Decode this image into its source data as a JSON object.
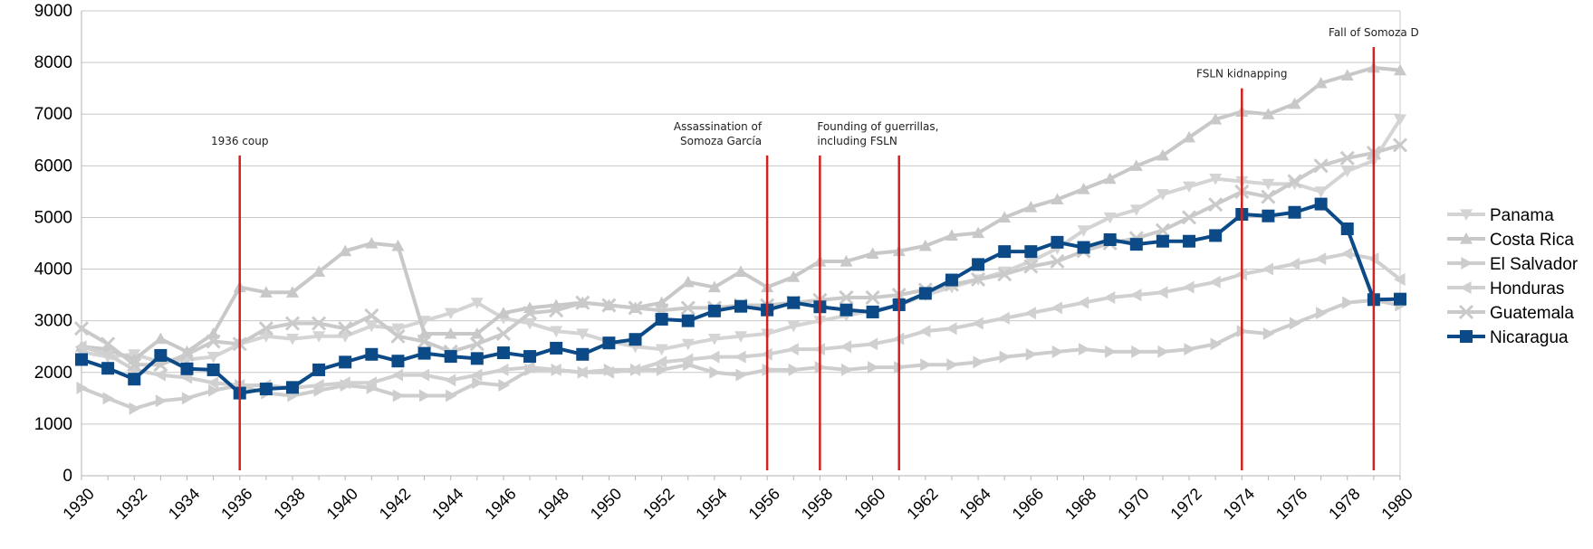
{
  "chart_data": {
    "type": "line",
    "title": "",
    "xlabel": "",
    "ylabel": "",
    "ylim": [
      0,
      9000
    ],
    "xlim": [
      1930,
      1980
    ],
    "grid": true,
    "legend_position": "right",
    "y_ticks": [
      "0",
      "1000",
      "2000",
      "3000",
      "4000",
      "5000",
      "6000",
      "7000",
      "8000",
      "9000"
    ],
    "x_ticks": [
      "1930",
      "1932",
      "1934",
      "1936",
      "1938",
      "1940",
      "1942",
      "1944",
      "1946",
      "1948",
      "1950",
      "1952",
      "1954",
      "1956",
      "1958",
      "1960",
      "1962",
      "1964",
      "1966",
      "1968",
      "1970",
      "1972",
      "1974",
      "1976",
      "1978",
      "1980"
    ],
    "x": [
      1930,
      1931,
      1932,
      1933,
      1934,
      1935,
      1936,
      1937,
      1938,
      1939,
      1940,
      1941,
      1942,
      1943,
      1944,
      1945,
      1946,
      1947,
      1948,
      1949,
      1950,
      1951,
      1952,
      1953,
      1954,
      1955,
      1956,
      1957,
      1958,
      1959,
      1960,
      1961,
      1962,
      1963,
      1964,
      1965,
      1966,
      1967,
      1968,
      1969,
      1970,
      1971,
      1972,
      1973,
      1974,
      1975,
      1976,
      1977,
      1978,
      1979,
      1980
    ],
    "series": [
      {
        "name": "Panama",
        "color": "#d4d4d4",
        "marker": "triangle-down",
        "values": [
          2400,
          2300,
          2350,
          2200,
          2250,
          2300,
          2550,
          2700,
          2650,
          2700,
          2700,
          2900,
          2850,
          3000,
          3150,
          3350,
          3050,
          2950,
          2800,
          2750,
          2600,
          2500,
          2450,
          2550,
          2650,
          2700,
          2750,
          2900,
          3000,
          3100,
          3200,
          3300,
          3500,
          3650,
          3800,
          3950,
          4150,
          4400,
          4750,
          5000,
          5150,
          5450,
          5600,
          5750,
          5700,
          5650,
          5650,
          5500,
          5900,
          6100,
          6900
        ]
      },
      {
        "name": "Costa Rica",
        "color": "#c8c8c8",
        "marker": "triangle-up",
        "values": [
          2500,
          2450,
          2250,
          2650,
          2400,
          2750,
          3650,
          3550,
          3550,
          3950,
          4350,
          4500,
          4450,
          2750,
          2750,
          2750,
          3150,
          3250,
          3300,
          3350,
          3300,
          3250,
          3350,
          3750,
          3650,
          3950,
          3650,
          3850,
          4150,
          4150,
          4300,
          4350,
          4450,
          4650,
          4700,
          5000,
          5200,
          5350,
          5550,
          5750,
          6000,
          6200,
          6550,
          6900,
          7050,
          7000,
          7200,
          7600,
          7750,
          7900,
          7850
        ]
      },
      {
        "name": "El Salvador",
        "color": "#cdcdcd",
        "marker": "triangle-right",
        "values": [
          1700,
          1500,
          1300,
          1450,
          1500,
          1650,
          1750,
          1600,
          1550,
          1650,
          1750,
          1700,
          1550,
          1550,
          1550,
          1800,
          1750,
          2050,
          2050,
          2000,
          2050,
          2050,
          2050,
          2150,
          2000,
          1950,
          2050,
          2050,
          2100,
          2050,
          2100,
          2100,
          2150,
          2150,
          2200,
          2300,
          2350,
          2400,
          2450,
          2400,
          2400,
          2400,
          2450,
          2550,
          2800,
          2750,
          2950,
          3150,
          3350,
          3400,
          3300
        ]
      },
      {
        "name": "Honduras",
        "color": "#d0d0d0",
        "marker": "triangle-left",
        "values": [
          2500,
          2350,
          2050,
          1950,
          1900,
          1800,
          1750,
          1750,
          1700,
          1750,
          1800,
          1800,
          1950,
          1950,
          1850,
          1950,
          2050,
          2100,
          2050,
          2000,
          2000,
          2050,
          2200,
          2250,
          2300,
          2300,
          2350,
          2450,
          2450,
          2500,
          2550,
          2650,
          2800,
          2850,
          2950,
          3050,
          3150,
          3250,
          3350,
          3450,
          3500,
          3550,
          3650,
          3750,
          3900,
          4000,
          4100,
          4200,
          4300,
          4200,
          3800
        ]
      },
      {
        "name": "Guatemala",
        "color": "#cacaca",
        "marker": "x",
        "values": [
          2850,
          2550,
          2150,
          2150,
          2350,
          2600,
          2550,
          2850,
          2950,
          2950,
          2850,
          3100,
          2700,
          2600,
          2400,
          2550,
          2750,
          3150,
          3200,
          3350,
          3300,
          3250,
          3200,
          3250,
          3250,
          3300,
          3300,
          3350,
          3400,
          3450,
          3450,
          3500,
          3600,
          3700,
          3800,
          3900,
          4050,
          4150,
          4350,
          4500,
          4600,
          4750,
          5000,
          5250,
          5500,
          5400,
          5700,
          6000,
          6150,
          6250,
          6400
        ]
      },
      {
        "name": "Nicaragua",
        "color": "#0b4a86",
        "marker": "square",
        "values": [
          2250,
          2080,
          1870,
          2330,
          2070,
          2050,
          1600,
          1680,
          1710,
          2050,
          2200,
          2350,
          2220,
          2370,
          2310,
          2270,
          2380,
          2310,
          2470,
          2350,
          2570,
          2640,
          3030,
          3000,
          3190,
          3280,
          3210,
          3350,
          3270,
          3210,
          3170,
          3310,
          3530,
          3790,
          4090,
          4340,
          4340,
          4520,
          4420,
          4570,
          4480,
          4540,
          4540,
          4650,
          5060,
          5030,
          5100,
          5260,
          4780,
          3410,
          3420
        ]
      }
    ],
    "annotations": [
      {
        "x": 1936,
        "lines": [
          "1936 coup"
        ],
        "top": 6200
      },
      {
        "x": 1956,
        "lines": [
          "Assassination of",
          "Somoza García"
        ],
        "top": 6200
      },
      {
        "x": 1958,
        "lines": [
          "Founding of guerrillas,",
          "including FSLN"
        ],
        "top": 6200
      },
      {
        "x": 1961,
        "lines": [],
        "top": 6200
      },
      {
        "x": 1974,
        "lines": [
          "FSLN kidnapping"
        ],
        "top": 7500
      },
      {
        "x": 1979,
        "lines": [
          "Fall of Somoza D"
        ],
        "top": 8300
      }
    ]
  }
}
